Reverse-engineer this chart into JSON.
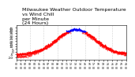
{
  "title_line1": "Milwaukee Weather Outdoor Temperature",
  "title_line2": "vs Wind Chill",
  "title_line3": "per Minute",
  "title_line4": "(24 Hours)",
  "background_color": "#ffffff",
  "plot_bg_color": "#ffffff",
  "dot_color_main": "#ff0000",
  "dot_color_peak": "#0000ff",
  "ylim": [
    -15,
    50
  ],
  "yticks": [
    -10,
    -5,
    0,
    5,
    10,
    15,
    20,
    25,
    30,
    35,
    40,
    45
  ],
  "grid_color": "#aaaaaa",
  "dot_size": 1.5,
  "title_fontsize": 4.5,
  "tick_fontsize": 3.2
}
